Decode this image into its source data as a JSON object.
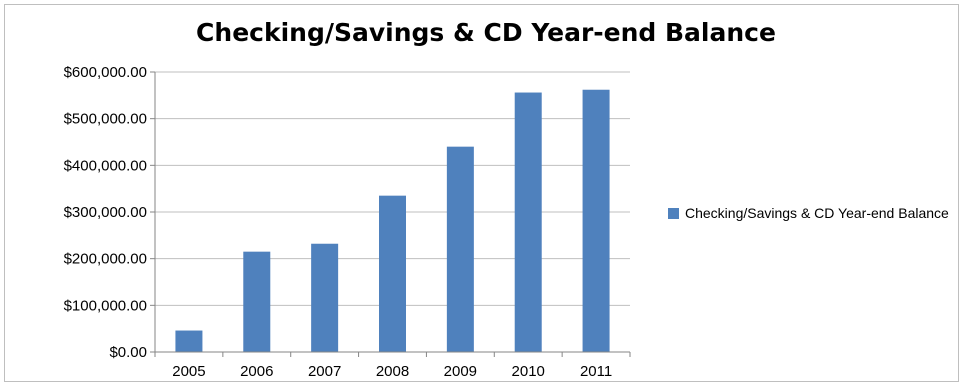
{
  "chart_data": {
    "type": "bar",
    "title": "Checking/Savings & CD Year-end Balance",
    "categories": [
      "2005",
      "2006",
      "2007",
      "2008",
      "2009",
      "2010",
      "2011"
    ],
    "series": [
      {
        "name": "Checking/Savings & CD Year-end Balance",
        "values": [
          46000,
          215000,
          232000,
          335000,
          440000,
          556000,
          562000
        ],
        "color": "#4f81bd"
      }
    ],
    "y_ticks": [
      "$0.00",
      "$100,000.00",
      "$200,000.00",
      "$300,000.00",
      "$400,000.00",
      "$500,000.00",
      "$600,000.00"
    ],
    "ylim": [
      0,
      600000
    ],
    "grid": true,
    "legend_position": "right"
  }
}
